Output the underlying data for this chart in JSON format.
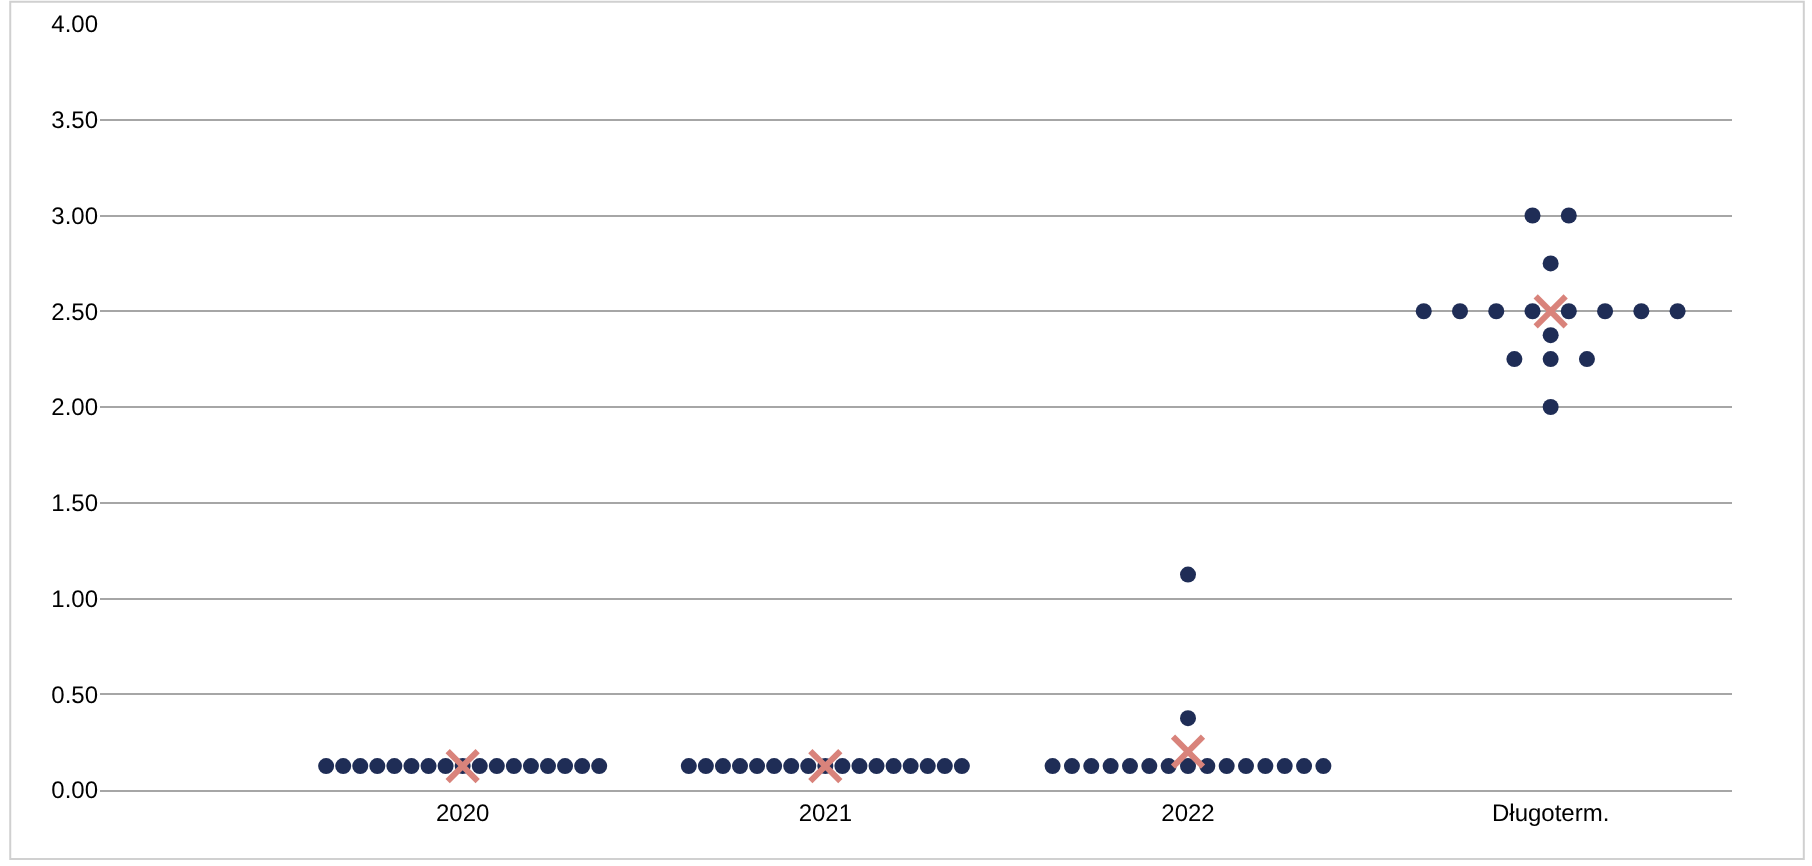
{
  "chart_data": {
    "type": "scatter",
    "categories": [
      "2020",
      "2021",
      "2022",
      "Długoterm."
    ],
    "marker": "circle",
    "series": [
      {
        "color": "#1f2d56",
        "values": [
          0.125,
          0.125,
          0.125,
          3.0
        ]
      },
      {
        "color": "#1f2d56",
        "values": [
          0.125,
          0.125,
          0.125,
          3.0
        ]
      },
      {
        "color": "#1f2d56",
        "values": [
          0.125,
          0.125,
          0.125,
          2.75
        ]
      },
      {
        "color": "#1f2d56",
        "values": [
          0.125,
          0.125,
          0.125,
          2.5
        ]
      },
      {
        "color": "#1f2d56",
        "values": [
          0.125,
          0.125,
          0.125,
          2.5
        ]
      },
      {
        "color": "#1f2d56",
        "values": [
          0.125,
          0.125,
          0.125,
          2.5
        ]
      },
      {
        "color": "#1f2d56",
        "values": [
          0.125,
          0.125,
          0.125,
          2.5
        ]
      },
      {
        "color": "#1f2d56",
        "values": [
          0.125,
          0.125,
          0.125,
          2.5
        ]
      },
      {
        "color": "#1f2d56",
        "values": [
          0.125,
          0.125,
          0.125,
          2.5
        ]
      },
      {
        "color": "#1f2d56",
        "values": [
          0.125,
          0.125,
          0.125,
          2.5
        ]
      },
      {
        "color": "#1f2d56",
        "values": [
          0.125,
          0.125,
          0.125,
          2.5
        ]
      },
      {
        "color": "#1f2d56",
        "values": [
          0.125,
          0.125,
          0.125,
          2.375
        ]
      },
      {
        "color": "#1f2d56",
        "values": [
          0.125,
          0.125,
          0.125,
          2.25
        ]
      },
      {
        "color": "#1f2d56",
        "values": [
          0.125,
          0.125,
          0.125,
          2.25
        ]
      },
      {
        "color": "#1f2d56",
        "values": [
          0.125,
          0.125,
          0.125,
          2.25
        ]
      },
      {
        "color": "#1f2d56",
        "values": [
          0.125,
          0.125,
          0.375,
          2.0
        ]
      },
      {
        "color": "#1f2d56",
        "values": [
          0.125,
          0.125,
          1.125,
          null
        ]
      },
      {
        "color": "#d9837b",
        "marker": "cross",
        "values": [
          0.125,
          0.125,
          0.2,
          2.5
        ]
      }
    ],
    "ylim": [
      0,
      4
    ],
    "yticks": [
      {
        "value": 0,
        "label": "0.00"
      },
      {
        "value": 0.5,
        "label": "0.50"
      },
      {
        "value": 1,
        "label": "1.00"
      },
      {
        "value": 1.5,
        "label": "1.50"
      },
      {
        "value": 2,
        "label": "2.00"
      },
      {
        "value": 2.5,
        "label": "2.50"
      },
      {
        "value": 3,
        "label": "3.00"
      },
      {
        "value": 3.5,
        "label": "3.50"
      },
      {
        "value": 4,
        "label": "4.00"
      }
    ],
    "grid": "y"
  }
}
